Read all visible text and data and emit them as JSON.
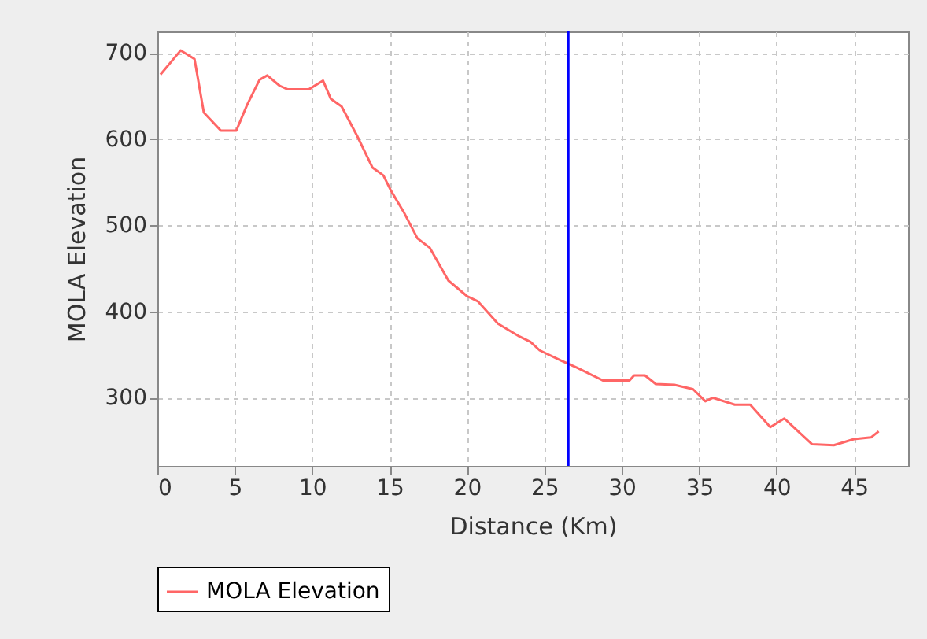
{
  "chart_data": {
    "type": "line",
    "xlabel": "Distance (Km)",
    "ylabel": "MOLA Elevation",
    "xlim": [
      0,
      48.5
    ],
    "ylim": [
      221,
      725
    ],
    "xticks": [
      0,
      5,
      10,
      15,
      20,
      25,
      30,
      35,
      40,
      45
    ],
    "yticks": [
      300,
      400,
      500,
      600,
      700
    ],
    "grid": true,
    "legend": "bottom",
    "series": [
      {
        "name": "MOLA Elevation",
        "color": "#ff6666",
        "x": [
          0.2,
          1.5,
          2.4,
          3.0,
          4.1,
          5.1,
          5.8,
          6.6,
          7.1,
          7.9,
          8.4,
          9.8,
          10.7,
          11.2,
          11.9,
          12.9,
          13.9,
          14.6,
          15.1,
          15.9,
          16.8,
          17.6,
          18.8,
          20.0,
          20.7,
          22.0,
          23.4,
          24.1,
          24.7,
          26.1,
          27.1,
          28.8,
          30.5,
          30.8,
          31.5,
          32.2,
          33.4,
          34.6,
          35.4,
          35.9,
          37.3,
          38.3,
          39.6,
          40.5,
          42.3,
          43.7,
          45.0,
          46.1,
          46.6
        ],
        "values": [
          675,
          703,
          693,
          631,
          610,
          610,
          640,
          669,
          674,
          662,
          658,
          658,
          668,
          647,
          638,
          604,
          567,
          558,
          540,
          516,
          485,
          474,
          436,
          418,
          412,
          386,
          371,
          365,
          355,
          343,
          335,
          320,
          320,
          326,
          326,
          316,
          315,
          310,
          296,
          300,
          292,
          292,
          266,
          276,
          246,
          245,
          252,
          254,
          261
        ]
      }
    ],
    "ref_lines": [
      {
        "axis": "x",
        "value": 26.55,
        "color": "#0000ff"
      }
    ]
  }
}
